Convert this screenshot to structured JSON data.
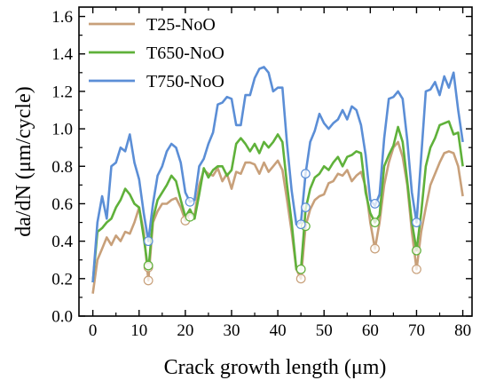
{
  "chart_data": {
    "type": "line",
    "xlabel": "Crack growth length (μm)",
    "ylabel": "da/dN (μm/cycle)",
    "xlim": [
      -3,
      82
    ],
    "ylim": [
      0.0,
      1.65
    ],
    "xticks": [
      0,
      10,
      20,
      30,
      40,
      50,
      60,
      70,
      80
    ],
    "yticks": [
      0.0,
      0.2,
      0.4,
      0.6,
      0.8,
      1.0,
      1.2,
      1.4,
      1.6
    ],
    "grid": false,
    "legend_position": "top-left",
    "series": [
      {
        "name": "T25-NoO",
        "color": "#c8a07a",
        "x": [
          0,
          1,
          2,
          3,
          4,
          5,
          6,
          7,
          8,
          9,
          10,
          11,
          12,
          13,
          14,
          15,
          16,
          17,
          18,
          19,
          20,
          21,
          22,
          23,
          24,
          25,
          26,
          27,
          28,
          29,
          30,
          31,
          32,
          33,
          34,
          35,
          36,
          37,
          38,
          39,
          40,
          41,
          42,
          43,
          44,
          45,
          46,
          47,
          48,
          49,
          50,
          51,
          52,
          53,
          54,
          55,
          56,
          57,
          58,
          59,
          60,
          61,
          62,
          63,
          64,
          65,
          66,
          67,
          68,
          69,
          70,
          71,
          72,
          73,
          74,
          75,
          76,
          77,
          78,
          79,
          80
        ],
        "y": [
          0.12,
          0.3,
          0.36,
          0.42,
          0.38,
          0.43,
          0.4,
          0.45,
          0.44,
          0.5,
          0.58,
          0.45,
          0.19,
          0.5,
          0.56,
          0.6,
          0.6,
          0.62,
          0.63,
          0.58,
          0.51,
          0.55,
          0.54,
          0.7,
          0.78,
          0.76,
          0.75,
          0.79,
          0.72,
          0.76,
          0.68,
          0.77,
          0.76,
          0.82,
          0.82,
          0.81,
          0.76,
          0.82,
          0.77,
          0.8,
          0.83,
          0.78,
          0.62,
          0.45,
          0.25,
          0.2,
          0.48,
          0.57,
          0.62,
          0.64,
          0.65,
          0.71,
          0.72,
          0.76,
          0.75,
          0.78,
          0.72,
          0.75,
          0.77,
          0.69,
          0.5,
          0.36,
          0.5,
          0.7,
          0.82,
          0.9,
          0.93,
          0.85,
          0.7,
          0.45,
          0.25,
          0.45,
          0.58,
          0.7,
          0.76,
          0.82,
          0.87,
          0.88,
          0.87,
          0.8,
          0.64
        ]
      },
      {
        "name": "T650-NoO",
        "color": "#5fb13a",
        "x": [
          0,
          1,
          2,
          3,
          4,
          5,
          6,
          7,
          8,
          9,
          10,
          11,
          12,
          13,
          14,
          15,
          16,
          17,
          18,
          19,
          20,
          21,
          22,
          23,
          24,
          25,
          26,
          27,
          28,
          29,
          30,
          31,
          32,
          33,
          34,
          35,
          36,
          37,
          38,
          39,
          40,
          41,
          42,
          43,
          44,
          45,
          46,
          47,
          48,
          49,
          50,
          51,
          52,
          53,
          54,
          55,
          56,
          57,
          58,
          59,
          60,
          61,
          62,
          63,
          64,
          65,
          66,
          67,
          68,
          69,
          70,
          71,
          72,
          73,
          74,
          75,
          76,
          77,
          78,
          79,
          80
        ],
        "y": [
          0.18,
          0.45,
          0.47,
          0.5,
          0.52,
          0.58,
          0.62,
          0.68,
          0.65,
          0.6,
          0.58,
          0.42,
          0.24,
          0.52,
          0.62,
          0.66,
          0.7,
          0.75,
          0.72,
          0.62,
          0.53,
          0.57,
          0.52,
          0.65,
          0.79,
          0.74,
          0.78,
          0.8,
          0.8,
          0.75,
          0.78,
          0.92,
          0.95,
          0.92,
          0.88,
          0.92,
          0.87,
          0.93,
          0.9,
          0.93,
          0.97,
          0.93,
          0.7,
          0.5,
          0.25,
          0.25,
          0.57,
          0.68,
          0.74,
          0.76,
          0.8,
          0.78,
          0.82,
          0.85,
          0.8,
          0.85,
          0.86,
          0.88,
          0.87,
          0.66,
          0.55,
          0.5,
          0.54,
          0.8,
          0.86,
          0.91,
          1.01,
          0.93,
          0.72,
          0.5,
          0.35,
          0.55,
          0.8,
          0.9,
          0.95,
          1.02,
          1.03,
          1.04,
          0.97,
          0.98,
          0.8
        ]
      },
      {
        "name": "T750-NoO",
        "color": "#5b8ed6",
        "x": [
          0,
          1,
          2,
          3,
          4,
          5,
          6,
          7,
          8,
          9,
          10,
          11,
          12,
          13,
          14,
          15,
          16,
          17,
          18,
          19,
          20,
          21,
          22,
          23,
          24,
          25,
          26,
          27,
          28,
          29,
          30,
          31,
          32,
          33,
          34,
          35,
          36,
          37,
          38,
          39,
          40,
          41,
          42,
          43,
          44,
          45,
          46,
          47,
          48,
          49,
          50,
          51,
          52,
          53,
          54,
          55,
          56,
          57,
          58,
          59,
          60,
          61,
          62,
          63,
          64,
          65,
          66,
          67,
          68,
          69,
          70,
          71,
          72,
          73,
          74,
          75,
          76,
          77,
          78,
          79,
          80
        ],
        "y": [
          0.18,
          0.5,
          0.64,
          0.52,
          0.8,
          0.82,
          0.9,
          0.88,
          0.97,
          0.82,
          0.73,
          0.55,
          0.4,
          0.6,
          0.75,
          0.8,
          0.88,
          0.92,
          0.9,
          0.82,
          0.66,
          0.61,
          0.62,
          0.8,
          0.84,
          0.92,
          0.98,
          1.13,
          1.14,
          1.17,
          1.16,
          1.02,
          1.02,
          1.18,
          1.18,
          1.27,
          1.32,
          1.33,
          1.3,
          1.2,
          1.22,
          1.22,
          0.92,
          0.67,
          0.49,
          0.5,
          0.76,
          0.93,
          0.99,
          1.08,
          1.03,
          1.0,
          1.03,
          1.05,
          1.1,
          1.05,
          1.12,
          1.1,
          1.02,
          0.86,
          0.62,
          0.59,
          0.65,
          0.95,
          1.16,
          1.17,
          1.2,
          1.16,
          0.94,
          0.66,
          0.5,
          0.85,
          1.2,
          1.21,
          1.25,
          1.18,
          1.28,
          1.22,
          1.3,
          1.1,
          0.93
        ]
      }
    ],
    "markers": {
      "T25-NoO": [
        [
          12,
          0.19
        ],
        [
          12,
          0.26
        ],
        [
          20,
          0.51
        ],
        [
          45,
          0.2
        ],
        [
          45,
          0.25
        ],
        [
          61,
          0.36
        ],
        [
          70,
          0.25
        ]
      ],
      "T650-NoO": [
        [
          12,
          0.27
        ],
        [
          21,
          0.53
        ],
        [
          45,
          0.25
        ],
        [
          46,
          0.48
        ],
        [
          61,
          0.5
        ],
        [
          70,
          0.35
        ]
      ],
      "T750-NoO": [
        [
          12,
          0.4
        ],
        [
          21,
          0.61
        ],
        [
          45,
          0.49
        ],
        [
          46,
          0.58
        ],
        [
          46,
          0.76
        ],
        [
          61,
          0.6
        ],
        [
          70,
          0.5
        ]
      ]
    }
  }
}
